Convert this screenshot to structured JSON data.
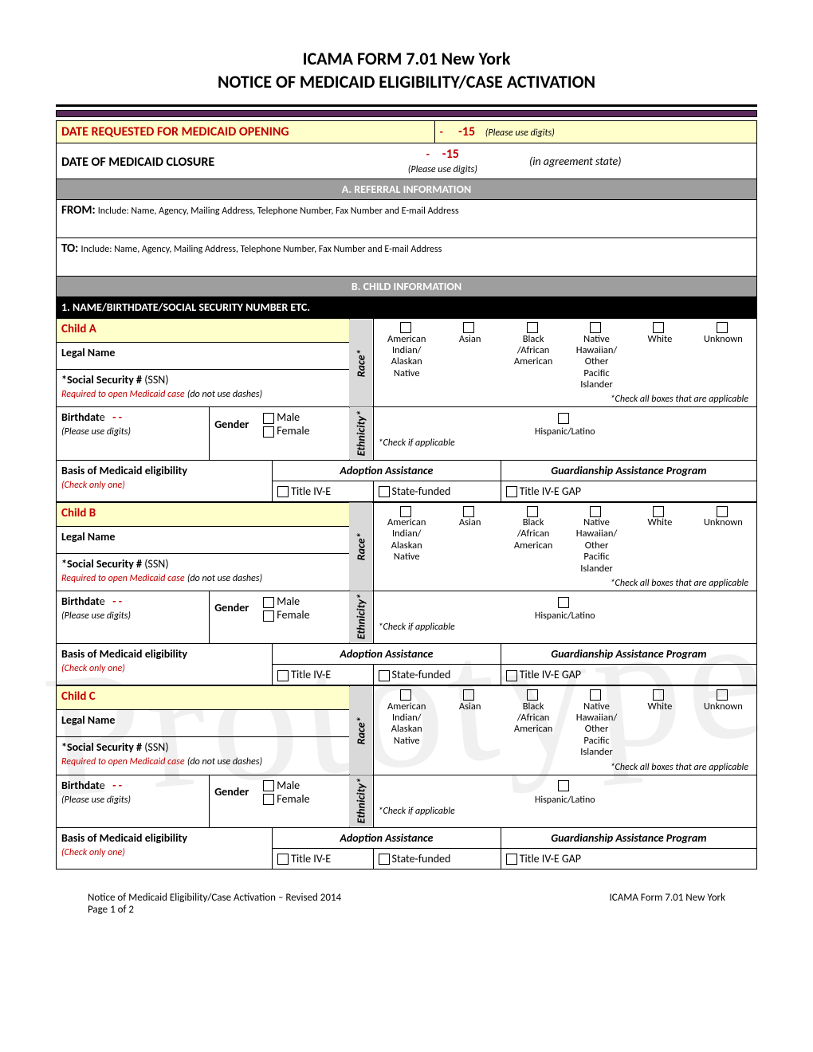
{
  "title_line1": "ICAMA FORM 7.01 New York",
  "title_line2": "NOTICE OF MEDICAID ELIGIBILITY/CASE ACTIVATION",
  "watermark": "Prototype",
  "opening": {
    "label": "DATE REQUESTED FOR MEDICAID OPENING",
    "dash": "-",
    "value": "-15",
    "hint": "(Please use digits)"
  },
  "closure": {
    "label": "DATE OF MEDICAID CLOSURE",
    "dash": "-",
    "value": "-15",
    "hint": "(Please use digits)",
    "note": "(in agreement state)"
  },
  "sectionA": {
    "header": "A. REFERRAL INFORMATION",
    "from_label": "FROM:",
    "from_text": "Include: Name, Agency, Mailing Address, Telephone Number, Fax Number and E-mail Address",
    "to_label": "TO:",
    "to_text": "Include: Name, Agency, Mailing Address, Telephone Number, Fax Number and E-mail Address"
  },
  "sectionB": {
    "header": "B. CHILD INFORMATION",
    "sub1": "1. NAME/BIRTHDATE/SOCIAL SECURITY NUMBER ETC."
  },
  "race_label": "Race*",
  "race_options": [
    "American Indian/ Alaskan Native",
    "Asian",
    "Black /African American",
    "Native Hawaiian/ Other Pacific Islander",
    "White",
    "Unknown"
  ],
  "race_note": "*Check all boxes that are applicable",
  "eth_label": "Ethnicity*",
  "eth_option": "Hispanic/Latino",
  "eth_note": "*Check if applicable",
  "legal_name_label": "Legal Name",
  "ssn_label": "*Social Security #",
  "ssn_paren": "(SSN)",
  "ssn_note": "Required to open Medicaid case",
  "ssn_dash_note": "(do not use dashes)",
  "birth_label": "Birthdat",
  "birth_e": "e",
  "birth_dashes": "-   -",
  "birth_hint": "(Please use digits)",
  "gender_label": "Gender",
  "gender_male": "Male",
  "gender_female": "Female",
  "basis_label": "Basis of Medicaid eligibility",
  "basis_hint": "(Check only one)",
  "adopt_hdr": "Adoption Assistance",
  "guard_hdr": "Guardianship Assistance Program",
  "opt_iv_e": "Title IV-E",
  "opt_state": "State-funded",
  "opt_gap": "Title IV-E GAP",
  "children": [
    {
      "key": "Child A"
    },
    {
      "key": "Child B"
    },
    {
      "key": "Child C"
    }
  ],
  "footer": {
    "left1": "Notice of Medicaid Eligibility/Case Activation – Revised 2014",
    "left2": "Page 1 of 2",
    "right": "ICAMA Form 7.01 New York"
  },
  "colors": {
    "purple": "#5c2a5c",
    "yellow": "#ffffcc",
    "gray": "#9e9e9e",
    "red": "#c00000",
    "cell_gray": "#d9d9d9"
  }
}
